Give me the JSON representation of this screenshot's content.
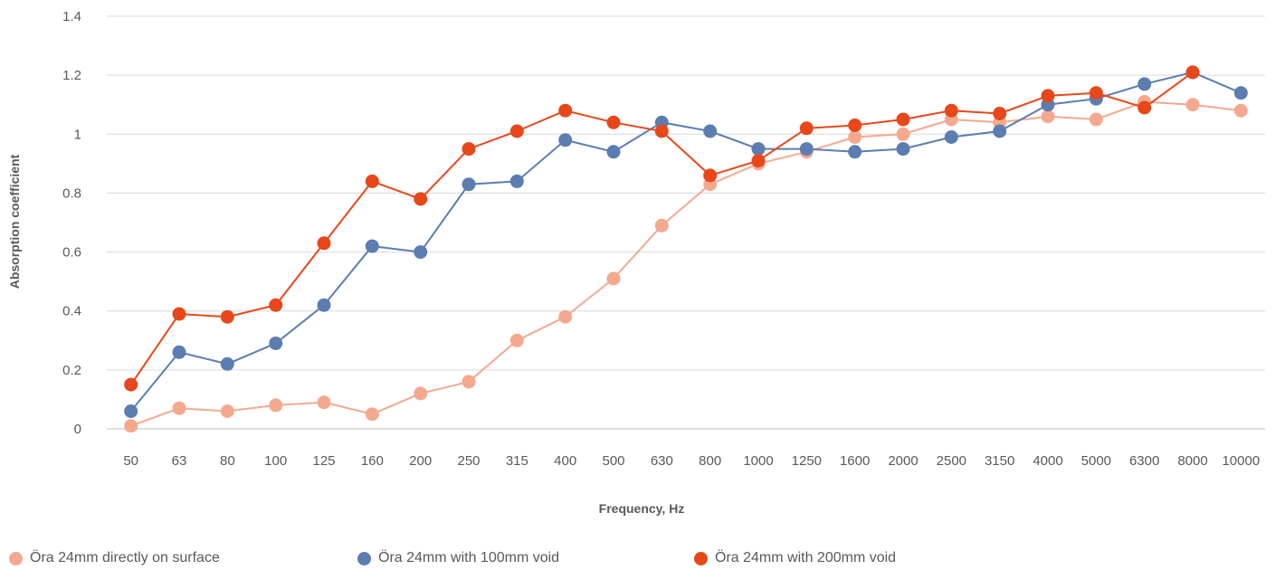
{
  "chart_data": {
    "type": "line",
    "title": "",
    "xlabel": "Frequency, Hz",
    "ylabel": "Absorption coefficient",
    "categories": [
      "50",
      "63",
      "80",
      "100",
      "125",
      "160",
      "200",
      "250",
      "315",
      "400",
      "500",
      "630",
      "800",
      "1000",
      "1250",
      "1600",
      "2000",
      "2500",
      "3150",
      "4000",
      "5000",
      "6300",
      "8000",
      "10000"
    ],
    "y_ticks": [
      "0",
      "0.2",
      "0.4",
      "0.6",
      "0.8",
      "1",
      "1.2",
      "1.4"
    ],
    "ylim": [
      0,
      1.4
    ],
    "grid": "horizontal",
    "legend_position": "bottom",
    "series": [
      {
        "name": "Öra 24mm directly on surface",
        "color": "#F4A98F",
        "values": [
          0.01,
          0.07,
          0.06,
          0.08,
          0.09,
          0.05,
          0.12,
          0.16,
          0.3,
          0.38,
          0.51,
          0.69,
          0.83,
          0.9,
          0.94,
          0.99,
          1.0,
          1.05,
          1.04,
          1.06,
          1.05,
          1.11,
          1.1,
          1.08
        ]
      },
      {
        "name": "Öra 24mm with 100mm void",
        "color": "#5B7DB1",
        "values": [
          0.06,
          0.26,
          0.22,
          0.29,
          0.42,
          0.62,
          0.6,
          0.83,
          0.84,
          0.98,
          0.94,
          1.04,
          1.01,
          0.95,
          0.95,
          0.94,
          0.95,
          0.99,
          1.01,
          1.1,
          1.12,
          1.17,
          1.21,
          1.14
        ]
      },
      {
        "name": "Öra 24mm with 200mm void",
        "color": "#E8471A",
        "values": [
          0.15,
          0.39,
          0.38,
          0.42,
          0.63,
          0.84,
          0.78,
          0.95,
          1.01,
          1.08,
          1.04,
          1.01,
          0.86,
          0.91,
          1.02,
          1.03,
          1.05,
          1.08,
          1.07,
          1.13,
          1.14,
          1.09,
          1.21,
          null
        ]
      }
    ]
  }
}
